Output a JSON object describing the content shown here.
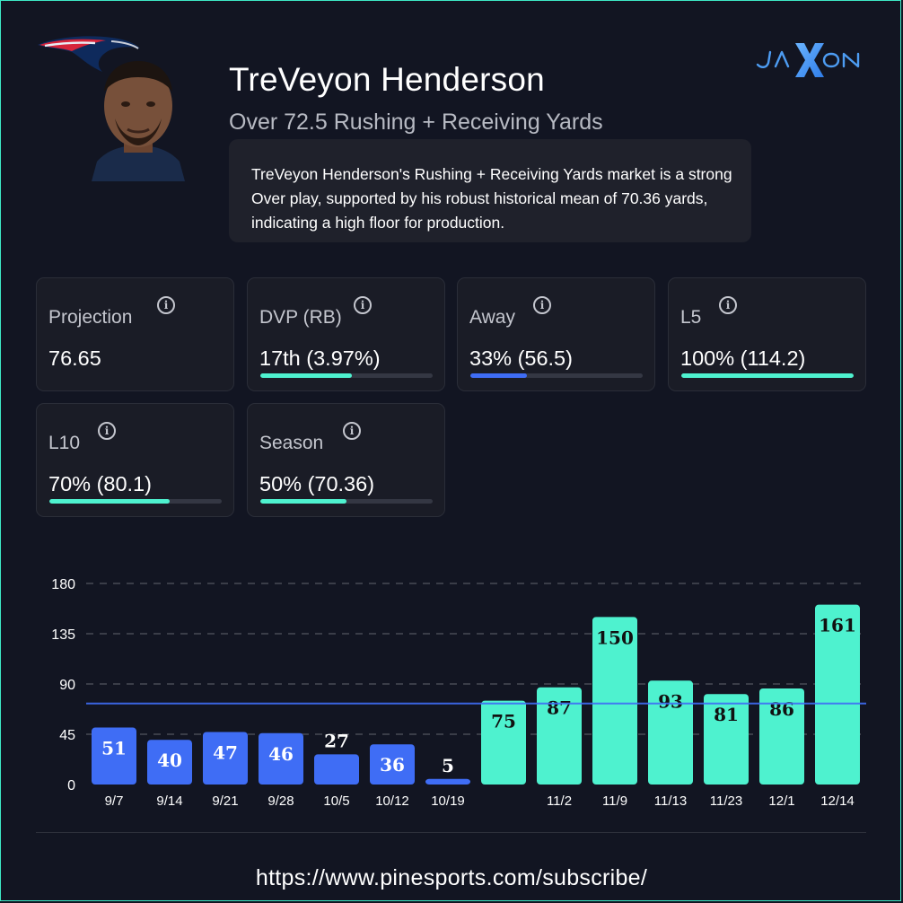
{
  "player": {
    "name": "TreVeyon Henderson",
    "market": "Over 72.5 Rushing + Receiving Yards",
    "summary": "TreVeyon Henderson's Rushing + Receiving Yards market is a strong Over play, supported by his robust historical mean of 70.36 yards, indicating a high floor for production."
  },
  "brand": {
    "logo_text": "JAXON",
    "logo_icon": "jaxon-logo",
    "team_logo_icon": "patriots-logo"
  },
  "stats": [
    {
      "label": "Projection",
      "value": "76.65",
      "progress": null,
      "color": null
    },
    {
      "label": "DVP (RB)",
      "value": "17th (3.97%)",
      "progress": 0.53,
      "color": "#4ef2cf"
    },
    {
      "label": "Away",
      "value": "33% (56.5)",
      "progress": 0.33,
      "color": "#3f6df5"
    },
    {
      "label": "L5",
      "value": "100% (114.2)",
      "progress": 1.0,
      "color": "#4ef2cf"
    },
    {
      "label": "L10",
      "value": "70% (80.1)",
      "progress": 0.7,
      "color": "#4ef2cf"
    },
    {
      "label": "Season",
      "value": "50% (70.36)",
      "progress": 0.5,
      "color": "#4ef2cf"
    }
  ],
  "chart_data": {
    "type": "bar",
    "categories": [
      "9/7",
      "9/14",
      "9/21",
      "9/28",
      "10/5",
      "10/12",
      "10/19",
      "",
      "11/2",
      "11/9",
      "11/13",
      "11/23",
      "12/1",
      "12/14"
    ],
    "values": [
      51,
      40,
      47,
      46,
      27,
      36,
      5,
      75,
      87,
      150,
      93,
      81,
      86,
      161
    ],
    "colors": [
      "#3f6df5",
      "#3f6df5",
      "#3f6df5",
      "#3f6df5",
      "#3f6df5",
      "#3f6df5",
      "#3f6df5",
      "#4ef2cf",
      "#4ef2cf",
      "#4ef2cf",
      "#4ef2cf",
      "#4ef2cf",
      "#4ef2cf",
      "#4ef2cf"
    ],
    "yticks": [
      0,
      45,
      90,
      135,
      180
    ],
    "ylim": [
      0,
      180
    ],
    "line_value": 72.5,
    "line_color": "#3f6df5",
    "grid": true
  },
  "footer": {
    "url": "https://www.pinesports.com/subscribe/"
  }
}
